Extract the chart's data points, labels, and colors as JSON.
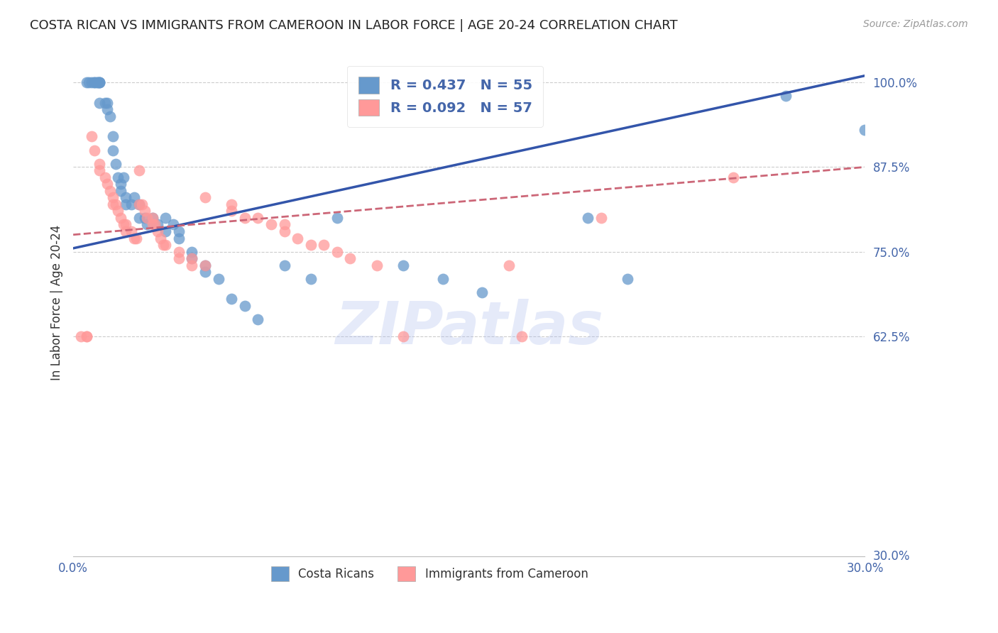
{
  "title": "COSTA RICAN VS IMMIGRANTS FROM CAMEROON IN LABOR FORCE | AGE 20-24 CORRELATION CHART",
  "source": "Source: ZipAtlas.com",
  "ylabel": "In Labor Force | Age 20-24",
  "xmin": 0.0,
  "xmax": 0.3,
  "ymin": 0.3,
  "ymax": 1.05,
  "right_yticks": [
    1.0,
    0.875,
    0.75,
    0.625
  ],
  "right_ytick_labels": [
    "100.0%",
    "87.5%",
    "75.0%",
    "62.5%"
  ],
  "legend_blue_label": "R = 0.437   N = 55",
  "legend_pink_label": "R = 0.092   N = 57",
  "legend_bottom_blue": "Costa Ricans",
  "legend_bottom_pink": "Immigrants from Cameroon",
  "blue_color": "#6699CC",
  "pink_color": "#FF9999",
  "blue_line_color": "#3355AA",
  "pink_line_color": "#CC6677",
  "watermark_text": "ZIPatlas",
  "blue_scatter_x": [
    0.005,
    0.006,
    0.007,
    0.008,
    0.008,
    0.009,
    0.009,
    0.01,
    0.01,
    0.01,
    0.01,
    0.012,
    0.013,
    0.013,
    0.014,
    0.015,
    0.015,
    0.016,
    0.017,
    0.018,
    0.018,
    0.019,
    0.02,
    0.02,
    0.022,
    0.023,
    0.025,
    0.025,
    0.027,
    0.028,
    0.03,
    0.032,
    0.035,
    0.035,
    0.038,
    0.04,
    0.04,
    0.045,
    0.045,
    0.05,
    0.05,
    0.055,
    0.06,
    0.065,
    0.07,
    0.08,
    0.09,
    0.1,
    0.125,
    0.14,
    0.155,
    0.195,
    0.21,
    0.27,
    0.3
  ],
  "blue_scatter_y": [
    1.0,
    1.0,
    1.0,
    1.0,
    1.0,
    1.0,
    1.0,
    1.0,
    1.0,
    1.0,
    0.97,
    0.97,
    0.97,
    0.96,
    0.95,
    0.92,
    0.9,
    0.88,
    0.86,
    0.85,
    0.84,
    0.86,
    0.83,
    0.82,
    0.82,
    0.83,
    0.82,
    0.8,
    0.8,
    0.79,
    0.8,
    0.79,
    0.78,
    0.8,
    0.79,
    0.78,
    0.77,
    0.75,
    0.74,
    0.73,
    0.72,
    0.71,
    0.68,
    0.67,
    0.65,
    0.73,
    0.71,
    0.8,
    0.73,
    0.71,
    0.69,
    0.8,
    0.71,
    0.98,
    0.93
  ],
  "pink_scatter_x": [
    0.003,
    0.005,
    0.007,
    0.008,
    0.01,
    0.01,
    0.012,
    0.013,
    0.014,
    0.015,
    0.015,
    0.016,
    0.017,
    0.018,
    0.019,
    0.02,
    0.02,
    0.022,
    0.023,
    0.024,
    0.025,
    0.025,
    0.026,
    0.027,
    0.028,
    0.03,
    0.03,
    0.031,
    0.032,
    0.033,
    0.034,
    0.035,
    0.04,
    0.04,
    0.045,
    0.045,
    0.05,
    0.05,
    0.06,
    0.06,
    0.065,
    0.07,
    0.075,
    0.08,
    0.08,
    0.085,
    0.09,
    0.095,
    0.1,
    0.105,
    0.115,
    0.125,
    0.005,
    0.165,
    0.17,
    0.2,
    0.25
  ],
  "pink_scatter_y": [
    0.625,
    0.625,
    0.92,
    0.9,
    0.88,
    0.87,
    0.86,
    0.85,
    0.84,
    0.83,
    0.82,
    0.82,
    0.81,
    0.8,
    0.79,
    0.79,
    0.78,
    0.78,
    0.77,
    0.77,
    0.87,
    0.82,
    0.82,
    0.81,
    0.8,
    0.8,
    0.79,
    0.79,
    0.78,
    0.77,
    0.76,
    0.76,
    0.75,
    0.74,
    0.74,
    0.73,
    0.73,
    0.83,
    0.82,
    0.81,
    0.8,
    0.8,
    0.79,
    0.79,
    0.78,
    0.77,
    0.76,
    0.76,
    0.75,
    0.74,
    0.73,
    0.625,
    0.625,
    0.73,
    0.625,
    0.8,
    0.86
  ],
  "blue_trendline_x": [
    0.0,
    0.3
  ],
  "blue_trendline_y": [
    0.755,
    1.01
  ],
  "pink_trendline_x": [
    0.0,
    0.3
  ],
  "pink_trendline_y": [
    0.775,
    0.875
  ]
}
